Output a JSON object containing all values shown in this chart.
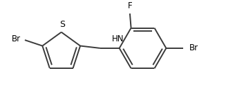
{
  "bg_color": "#ffffff",
  "bond_color": "#3a3a3a",
  "text_color": "#000000",
  "line_width": 1.4,
  "font_size": 8.5,
  "figsize": [
    3.4,
    1.48
  ],
  "dpi": 100,
  "xlim": [
    0.0,
    10.0
  ],
  "ylim": [
    0.5,
    4.5
  ]
}
